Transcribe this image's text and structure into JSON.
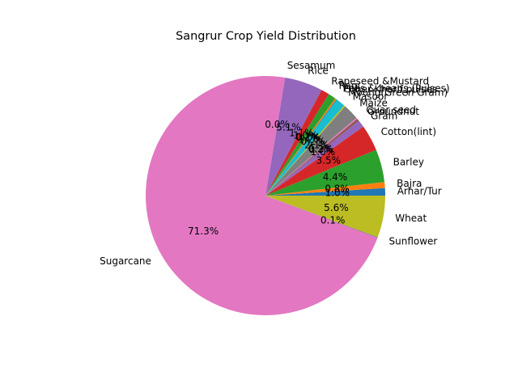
{
  "chart_data": {
    "type": "pie",
    "title": "Sangrur Crop Yield Distribution",
    "start_angle_deg": 0,
    "counterclockwise": true,
    "slices": [
      {
        "label": "Arhar/Tur",
        "value": 1.0,
        "pct_label": "1.0%",
        "color": "#1f77b4"
      },
      {
        "label": "Bajra",
        "value": 0.8,
        "pct_label": "0.8%",
        "color": "#ff7f0e"
      },
      {
        "label": "Barley",
        "value": 4.4,
        "pct_label": "4.4%",
        "color": "#2ca02c"
      },
      {
        "label": "Cotton(lint)",
        "value": 3.5,
        "pct_label": "3.5%",
        "color": "#d62728"
      },
      {
        "label": "Gram",
        "value": 1.0,
        "pct_label": "1.0%",
        "color": "#9467bd"
      },
      {
        "label": "Groundnut",
        "value": 0.3,
        "pct_label": "0.3%",
        "color": "#8c564b"
      },
      {
        "label": "Guar seed",
        "value": 0.2,
        "pct_label": "0.2%",
        "color": "#e377c2"
      },
      {
        "label": "Maize",
        "value": 2.1,
        "pct_label": "2.1%",
        "color": "#7f7f7f"
      },
      {
        "label": "Masoor",
        "value": 0.2,
        "pct_label": "0.2%",
        "color": "#bcbd22"
      },
      {
        "label": "Moong(Green Gram)",
        "value": 1.2,
        "pct_label": "1.2%",
        "color": "#17becf"
      },
      {
        "label": "Other Kharif pulses",
        "value": 0.1,
        "pct_label": "0.1%",
        "color": "#1f77b4"
      },
      {
        "label": "Peas & beans (Pulses)",
        "value": 0.2,
        "pct_label": "0.2%",
        "color": "#ff7f0e"
      },
      {
        "label": "Ragi",
        "value": 1.0,
        "pct_label": "1.0%",
        "color": "#2ca02c"
      },
      {
        "label": "Rapeseed &Mustard",
        "value": 1.1,
        "pct_label": "1.1%",
        "color": "#d62728"
      },
      {
        "label": "Rice",
        "value": 5.1,
        "pct_label": "5.1%",
        "color": "#9467bd"
      },
      {
        "label": "Sesamum",
        "value": 0.0,
        "pct_label": "0.0%",
        "color": "#8c564b"
      },
      {
        "label": "Sugarcane",
        "value": 71.3,
        "pct_label": "71.3%",
        "color": "#e377c2"
      },
      {
        "label": "Sunflower",
        "value": 0.1,
        "pct_label": "0.1%",
        "color": "#7f7f7f"
      },
      {
        "label": "Wheat",
        "value": 5.6,
        "pct_label": "5.6%",
        "color": "#bcbd22"
      }
    ]
  }
}
